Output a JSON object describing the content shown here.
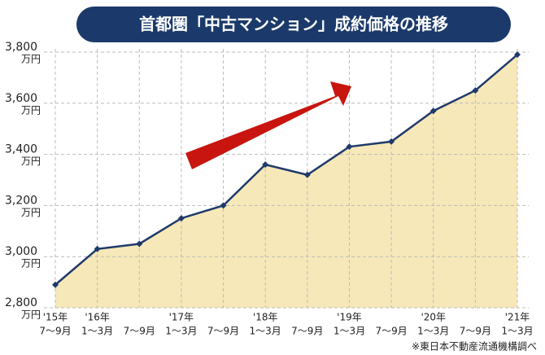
{
  "chart_data": {
    "type": "area",
    "title": "首都圏「中古マンション」成約価格の推移",
    "source": "※東日本不動産流通機構調べ",
    "y_unit": "万円",
    "category_groups": [
      "'15年",
      "'16年",
      null,
      "'17年",
      null,
      "'18年",
      null,
      "'19年",
      null,
      "'20年",
      null,
      "'21年"
    ],
    "categories": [
      "7～9月",
      "1～3月",
      "7～9月",
      "1～3月",
      "7～9月",
      "1～3月",
      "7～9月",
      "1～3月",
      "7～9月",
      "1～3月",
      "7～9月",
      "1～3月"
    ],
    "values": [
      2890,
      3030,
      3050,
      3150,
      3200,
      3360,
      3320,
      3430,
      3450,
      3570,
      3650,
      3790
    ],
    "color": "#1f3a6b",
    "fill": "#f6e8b8",
    "ylim": [
      2800,
      3800
    ],
    "yticks": [
      {
        "value": 2800,
        "label": "2,800"
      },
      {
        "value": 3000,
        "label": "3,000"
      },
      {
        "value": 3200,
        "label": "3,200"
      },
      {
        "value": 3400,
        "label": "3,400"
      },
      {
        "value": 3600,
        "label": "3,600"
      },
      {
        "value": 3800,
        "label": "3,800"
      }
    ],
    "grid": true
  }
}
